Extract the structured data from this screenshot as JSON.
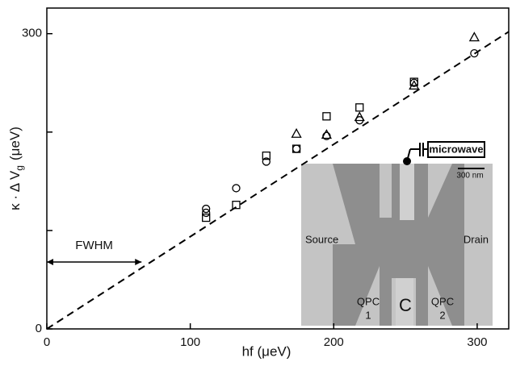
{
  "chart_data": {
    "type": "scatter",
    "x_label": "hf (μeV)",
    "y_label": {
      "main": "κ · Δ V",
      "sub": "g",
      "unit": "(μeV)"
    },
    "xlim": [
      0,
      322
    ],
    "ylim": [
      0,
      326
    ],
    "xticks": [
      0,
      100,
      200,
      300
    ],
    "yticks": [
      0,
      300
    ],
    "y_minor_ticks": [
      100,
      200
    ],
    "series": [
      {
        "marker": "circle",
        "x": [
          111,
          111,
          132,
          153,
          174,
          195,
          218,
          256,
          298
        ],
        "values": [
          122,
          118,
          143,
          170,
          183,
          196,
          212,
          250,
          280
        ]
      },
      {
        "marker": "square",
        "x": [
          111,
          132,
          153,
          174,
          195,
          218,
          256
        ],
        "values": [
          113,
          126,
          176,
          183,
          216,
          225,
          251
        ]
      },
      {
        "marker": "triangle",
        "x": [
          174,
          195,
          218,
          256,
          298
        ],
        "values": [
          198,
          197,
          215,
          247,
          296
        ]
      }
    ],
    "fit_line": {
      "x": [
        0,
        322
      ],
      "values": [
        0,
        302
      ]
    },
    "fwhm": {
      "label": "FWHM",
      "x": [
        0,
        66
      ],
      "value": 68
    },
    "inset": {
      "microwave": "microwave",
      "scale": "300 nm",
      "source": "Source",
      "drain": "Drain",
      "qpc1": [
        "QPC",
        "1"
      ],
      "qpc2": [
        "QPC",
        "2"
      ],
      "center": "C"
    }
  }
}
